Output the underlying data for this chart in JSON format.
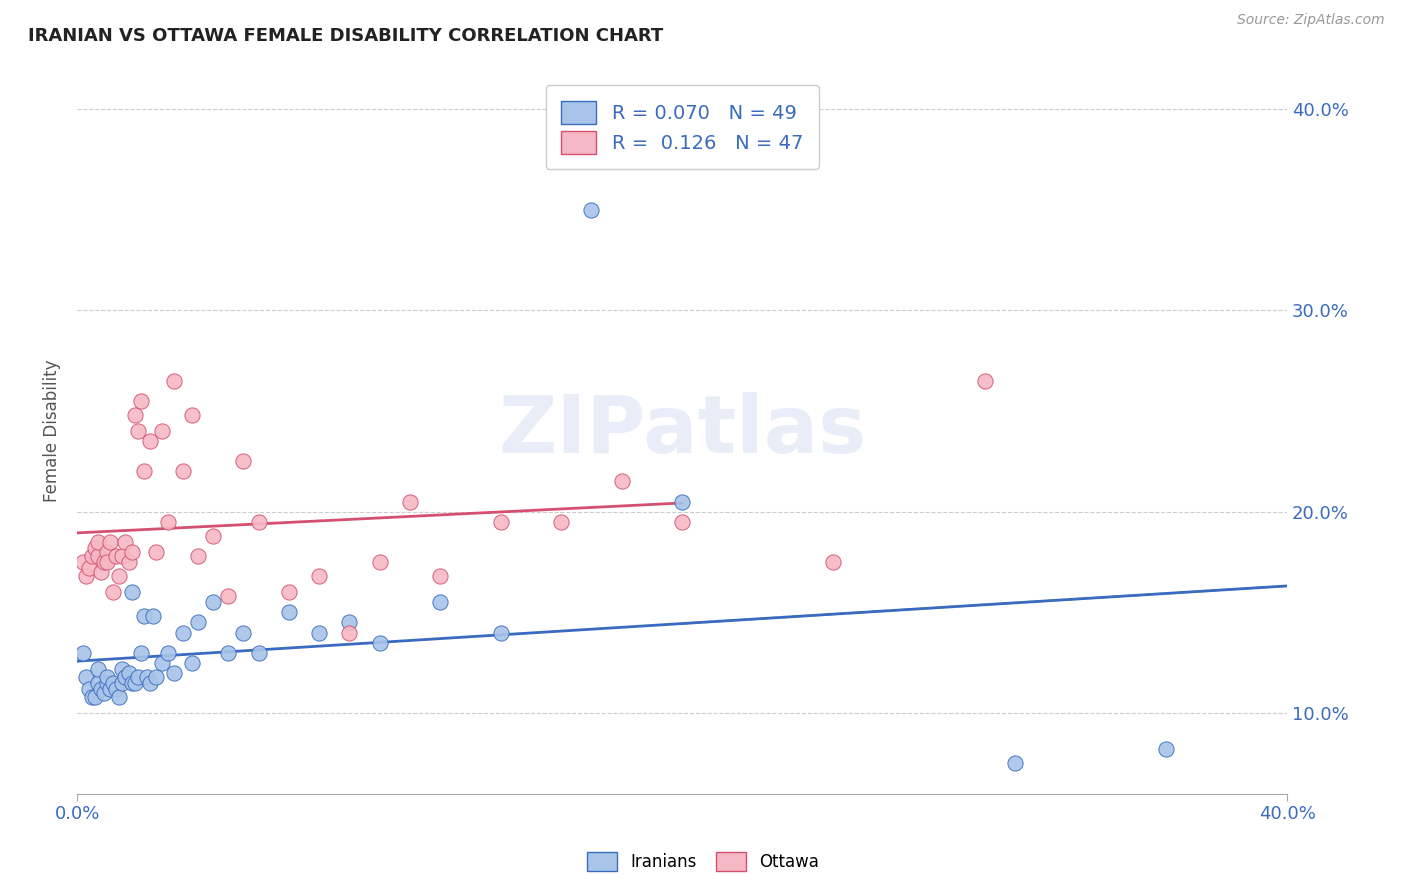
{
  "title": "IRANIAN VS OTTAWA FEMALE DISABILITY CORRELATION CHART",
  "source": "Source: ZipAtlas.com",
  "ylabel": "Female Disability",
  "xlim": [
    0.0,
    0.4
  ],
  "ylim": [
    0.06,
    0.42
  ],
  "ytick_values": [
    0.1,
    0.2,
    0.3,
    0.4
  ],
  "iranians_R": 0.07,
  "iranians_N": 49,
  "ottawa_R": 0.126,
  "ottawa_N": 47,
  "iranians_color": "#a8c4e8",
  "ottawa_color": "#f5b8c4",
  "iranians_line_color": "#3a6bbf",
  "ottawa_line_color": "#d45070",
  "watermark": "ZIPatlas",
  "iranians_x": [
    0.002,
    0.003,
    0.004,
    0.005,
    0.006,
    0.007,
    0.007,
    0.008,
    0.009,
    0.01,
    0.01,
    0.011,
    0.012,
    0.013,
    0.014,
    0.015,
    0.015,
    0.016,
    0.017,
    0.018,
    0.018,
    0.019,
    0.02,
    0.021,
    0.022,
    0.023,
    0.024,
    0.025,
    0.026,
    0.028,
    0.03,
    0.032,
    0.035,
    0.038,
    0.04,
    0.045,
    0.05,
    0.055,
    0.06,
    0.07,
    0.08,
    0.09,
    0.1,
    0.12,
    0.14,
    0.17,
    0.2,
    0.31,
    0.36
  ],
  "iranians_y": [
    0.13,
    0.118,
    0.112,
    0.108,
    0.108,
    0.115,
    0.122,
    0.112,
    0.11,
    0.115,
    0.118,
    0.112,
    0.115,
    0.112,
    0.108,
    0.115,
    0.122,
    0.118,
    0.12,
    0.115,
    0.16,
    0.115,
    0.118,
    0.13,
    0.148,
    0.118,
    0.115,
    0.148,
    0.118,
    0.125,
    0.13,
    0.12,
    0.14,
    0.125,
    0.145,
    0.155,
    0.13,
    0.14,
    0.13,
    0.15,
    0.14,
    0.145,
    0.135,
    0.155,
    0.14,
    0.35,
    0.205,
    0.075,
    0.082
  ],
  "ottawa_x": [
    0.002,
    0.003,
    0.004,
    0.005,
    0.006,
    0.007,
    0.007,
    0.008,
    0.009,
    0.01,
    0.01,
    0.011,
    0.012,
    0.013,
    0.014,
    0.015,
    0.016,
    0.017,
    0.018,
    0.019,
    0.02,
    0.021,
    0.022,
    0.024,
    0.026,
    0.028,
    0.03,
    0.032,
    0.035,
    0.038,
    0.04,
    0.045,
    0.05,
    0.055,
    0.06,
    0.07,
    0.08,
    0.09,
    0.1,
    0.11,
    0.12,
    0.14,
    0.16,
    0.18,
    0.2,
    0.25,
    0.3
  ],
  "ottawa_y": [
    0.175,
    0.168,
    0.172,
    0.178,
    0.182,
    0.178,
    0.185,
    0.17,
    0.175,
    0.18,
    0.175,
    0.185,
    0.16,
    0.178,
    0.168,
    0.178,
    0.185,
    0.175,
    0.18,
    0.248,
    0.24,
    0.255,
    0.22,
    0.235,
    0.18,
    0.24,
    0.195,
    0.265,
    0.22,
    0.248,
    0.178,
    0.188,
    0.158,
    0.225,
    0.195,
    0.16,
    0.168,
    0.14,
    0.175,
    0.205,
    0.168,
    0.195,
    0.195,
    0.215,
    0.195,
    0.175,
    0.265
  ]
}
